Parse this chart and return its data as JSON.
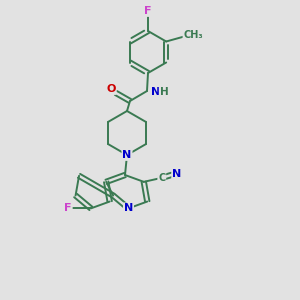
{
  "background_color": "#e2e2e2",
  "bond_color": "#3a7a52",
  "atom_colors": {
    "F": "#cc44cc",
    "O": "#cc0000",
    "N": "#0000cc",
    "C_label": "#3a7a52",
    "H": "#3a7a52"
  },
  "figsize": [
    3.0,
    3.0
  ],
  "dpi": 100
}
